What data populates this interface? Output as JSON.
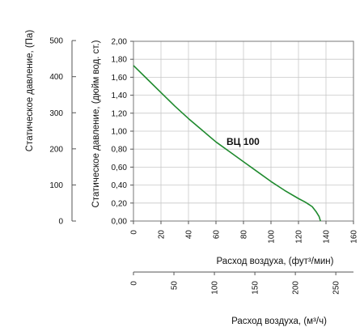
{
  "chart_data": {
    "type": "line",
    "title": "",
    "series": [
      {
        "name": "ВЦ 100",
        "color": "#1f8a2e",
        "x": [
          0,
          10,
          20,
          30,
          40,
          50,
          60,
          70,
          80,
          90,
          100,
          110,
          120,
          125,
          130,
          133,
          135,
          136
        ],
        "y": [
          1.73,
          1.58,
          1.43,
          1.28,
          1.14,
          1.01,
          0.88,
          0.77,
          0.66,
          0.55,
          0.44,
          0.34,
          0.25,
          0.21,
          0.16,
          0.1,
          0.05,
          0.0
        ]
      }
    ],
    "axes": {
      "x_primary": {
        "label": "Расход воздуха, (фут³/мин)",
        "range": [
          0,
          160
        ],
        "ticks": [
          "0",
          "20",
          "40",
          "60",
          "80",
          "100",
          "120",
          "140",
          "160"
        ],
        "grid": true
      },
      "x_secondary": {
        "label": "Расход воздуха, (м³/ч)",
        "range": [
          0,
          271.84
        ],
        "ticks": [
          "0",
          "50",
          "100",
          "150",
          "200",
          "250"
        ]
      },
      "y_primary": {
        "label": "Статическое давление, (дюйм вод. ст.)",
        "range": [
          0,
          2.0
        ],
        "ticks": [
          "0,00",
          "0,20",
          "0,40",
          "0,60",
          "0,80",
          "1,00",
          "1,20",
          "1,40",
          "1,60",
          "1,80",
          "2,00"
        ],
        "grid": true
      },
      "y_secondary": {
        "label": "Статическое давление, (Па)",
        "range": [
          0,
          498
        ],
        "ticks": [
          "0",
          "100",
          "200",
          "300",
          "400",
          "500"
        ]
      }
    }
  }
}
